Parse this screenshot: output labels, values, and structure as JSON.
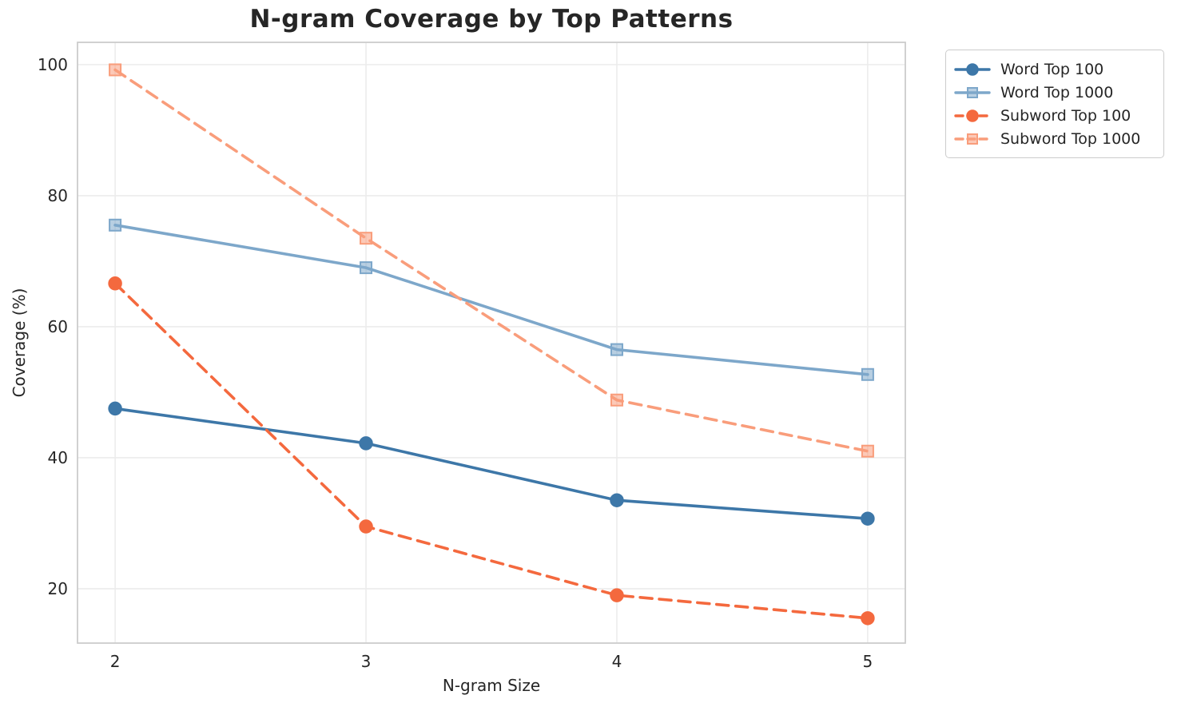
{
  "chart_data": {
    "type": "line",
    "title": "N-gram Coverage by Top Patterns",
    "xlabel": "N-gram Size",
    "ylabel": "Coverage (%)",
    "x": [
      2,
      3,
      4,
      5
    ],
    "x_tick_labels": [
      "2",
      "3",
      "4",
      "5"
    ],
    "y_ticks": [
      20,
      40,
      60,
      80,
      100
    ],
    "xlim": [
      1.85,
      5.15
    ],
    "ylim": [
      11.7,
      103.4
    ],
    "grid": true,
    "legend_position": "outside-upper-right",
    "colors": {
      "grid": "#ececec",
      "spine": "#cccccc",
      "text": "#262626"
    },
    "series": [
      {
        "name": "Word Top 100",
        "color": "#3d77a8",
        "marker": "circle",
        "line_style": "solid",
        "values": [
          47.5,
          42.2,
          33.5,
          30.7
        ]
      },
      {
        "name": "Word Top 1000",
        "color": "#7da7ca",
        "marker": "square",
        "line_style": "solid",
        "values": [
          75.5,
          69.0,
          56.5,
          52.7
        ]
      },
      {
        "name": "Subword Top 100",
        "color": "#f4693e",
        "marker": "circle",
        "line_style": "dashed",
        "values": [
          66.6,
          29.5,
          19.0,
          15.5
        ]
      },
      {
        "name": "Subword Top 1000",
        "color": "#f99d7b",
        "marker": "square",
        "line_style": "dashed",
        "values": [
          99.2,
          73.5,
          48.8,
          41.0
        ]
      }
    ]
  }
}
